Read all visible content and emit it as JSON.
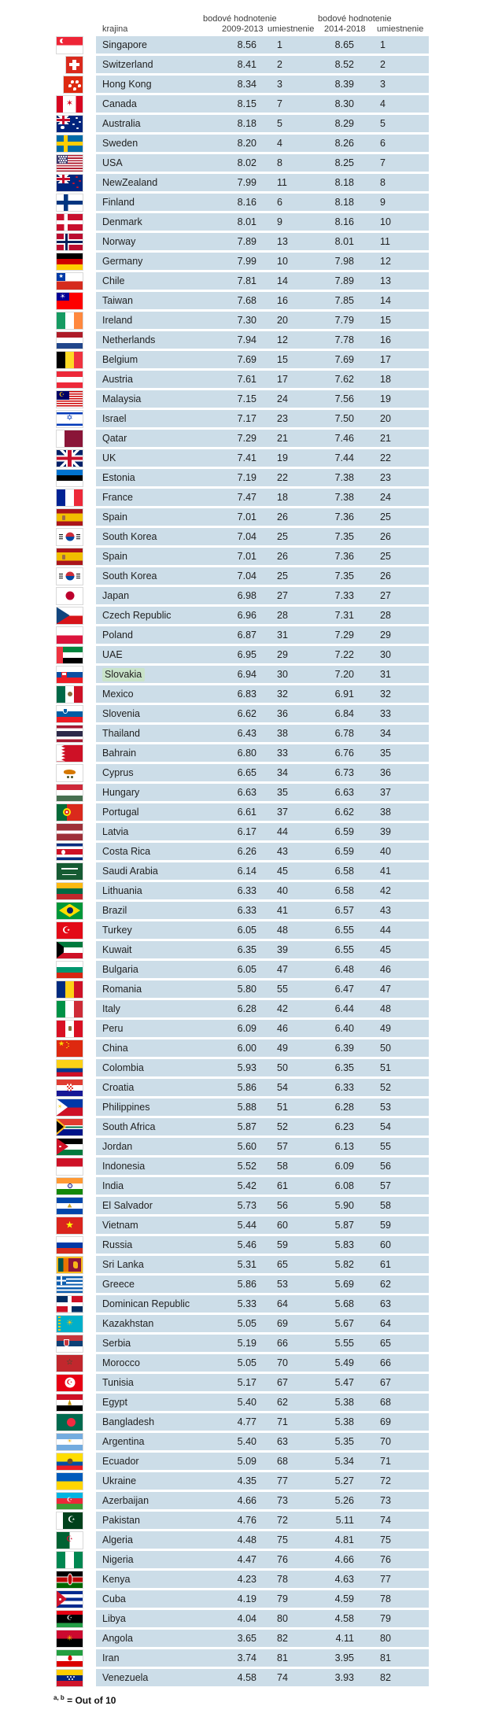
{
  "header": {
    "country": "krajina",
    "score_label_1": "bodové hodnotenie",
    "period_1": "2009-2013",
    "rank_label_1": "umiestnenie",
    "score_label_2": "bodové hodnotenie",
    "period_2": "2014-2018",
    "rank_label_2": "umiestnenie"
  },
  "footnote": {
    "sup": "a, b",
    "text": "= Out of 10"
  },
  "colors": {
    "row_bg": "#ccdde8",
    "highlight_bg": "#c9e3c9",
    "text": "#1f1f1f"
  },
  "flags": {
    "codes": [
      "sg",
      "ch",
      "hk",
      "ca",
      "au",
      "se",
      "us",
      "nz",
      "fi",
      "dk",
      "no",
      "de",
      "cl",
      "tw",
      "ie",
      "nl",
      "be",
      "at",
      "my",
      "il",
      "qa",
      "gb",
      "ee",
      "fr",
      "es",
      "kr",
      "es",
      "kr",
      "jp",
      "cz",
      "pl",
      "ae",
      "sk",
      "mx",
      "si",
      "th",
      "bh",
      "cy",
      "hu",
      "pt",
      "lv",
      "cr",
      "sa",
      "lt",
      "br",
      "tr",
      "kw",
      "bg",
      "ro",
      "it",
      "pe",
      "cn",
      "co",
      "hr",
      "ph",
      "za",
      "jo",
      "id",
      "in",
      "sv",
      "vn",
      "ru",
      "lk",
      "gr",
      "do",
      "kz",
      "rs",
      "ma",
      "tn",
      "eg",
      "bd",
      "ar",
      "ec",
      "ua",
      "az",
      "pk",
      "dz",
      "ng",
      "ke",
      "cu",
      "ly",
      "ao",
      "ir",
      "ve"
    ]
  },
  "chart_data": {
    "type": "table",
    "columns": [
      "krajina",
      "bodové hodnotenie 2009-2013",
      "umiestnenie",
      "bodové hodnotenie 2014-2018",
      "umiestnenie"
    ],
    "highlight_index": 32,
    "highlighted_country": "Slovakia",
    "note": "a, b = Out of 10",
    "score_scale": "Out of 10",
    "rows": [
      [
        "Singapore",
        "8.56",
        "1",
        "8.65",
        "1"
      ],
      [
        "Switzerland",
        "8.41",
        "2",
        "8.52",
        "2"
      ],
      [
        "Hong Kong",
        "8.34",
        "3",
        "8.39",
        "3"
      ],
      [
        "Canada",
        "8.15",
        "7",
        "8.30",
        "4"
      ],
      [
        "Australia",
        "8.18",
        "5",
        "8.29",
        "5"
      ],
      [
        "Sweden",
        "8.20",
        "4",
        "8.26",
        "6"
      ],
      [
        "USA",
        "8.02",
        "8",
        "8.25",
        "7"
      ],
      [
        "NewZealand",
        "7.99",
        "11",
        "8.18",
        "8"
      ],
      [
        "Finland",
        "8.16",
        "6",
        "8.18",
        "9"
      ],
      [
        "Denmark",
        "8.01",
        "9",
        "8.16",
        "10"
      ],
      [
        "Norway",
        "7.89",
        "13",
        "8.01",
        "11"
      ],
      [
        "Germany",
        "7.99",
        "10",
        "7.98",
        "12"
      ],
      [
        "Chile",
        "7.81",
        "14",
        "7.89",
        "13"
      ],
      [
        "Taiwan",
        "7.68",
        "16",
        "7.85",
        "14"
      ],
      [
        "Ireland",
        "7.30",
        "20",
        "7.79",
        "15"
      ],
      [
        "Netherlands",
        "7.94",
        "12",
        "7.78",
        "16"
      ],
      [
        "Belgium",
        "7.69",
        "15",
        "7.69",
        "17"
      ],
      [
        "Austria",
        "7.61",
        "17",
        "7.62",
        "18"
      ],
      [
        "Malaysia",
        "7.15",
        "24",
        "7.56",
        "19"
      ],
      [
        "Israel",
        "7.17",
        "23",
        "7.50",
        "20"
      ],
      [
        "Qatar",
        "7.29",
        "21",
        "7.46",
        "21"
      ],
      [
        "UK",
        "7.41",
        "19",
        "7.44",
        "22"
      ],
      [
        "Estonia",
        "7.19",
        "22",
        "7.38",
        "23"
      ],
      [
        "France",
        "7.47",
        "18",
        "7.38",
        "24"
      ],
      [
        "Spain",
        "7.01",
        "26",
        "7.36",
        "25"
      ],
      [
        "South Korea",
        "7.04",
        "25",
        "7.35",
        "26"
      ],
      [
        "Spain",
        "7.01",
        "26",
        "7.36",
        "25"
      ],
      [
        "South Korea",
        "7.04",
        "25",
        "7.35",
        "26"
      ],
      [
        "Japan",
        "6.98",
        "27",
        "7.33",
        "27"
      ],
      [
        "Czech Republic",
        "6.96",
        "28",
        "7.31",
        "28"
      ],
      [
        "Poland",
        "6.87",
        "31",
        "7.29",
        "29"
      ],
      [
        "UAE",
        "6.95",
        "29",
        "7.22",
        "30"
      ],
      [
        "Slovakia",
        "6.94",
        "30",
        "7.20",
        "31"
      ],
      [
        "Mexico",
        "6.83",
        "32",
        "6.91",
        "32"
      ],
      [
        "Slovenia",
        "6.62",
        "36",
        "6.84",
        "33"
      ],
      [
        "Thailand",
        "6.43",
        "38",
        "6.78",
        "34"
      ],
      [
        "Bahrain",
        "6.80",
        "33",
        "6.76",
        "35"
      ],
      [
        "Cyprus",
        "6.65",
        "34",
        "6.73",
        "36"
      ],
      [
        "Hungary",
        "6.63",
        "35",
        "6.63",
        "37"
      ],
      [
        "Portugal",
        "6.61",
        "37",
        "6.62",
        "38"
      ],
      [
        "Latvia",
        "6.17",
        "44",
        "6.59",
        "39"
      ],
      [
        "Costa Rica",
        "6.26",
        "43",
        "6.59",
        "40"
      ],
      [
        "Saudi Arabia",
        "6.14",
        "45",
        "6.58",
        "41"
      ],
      [
        "Lithuania",
        "6.33",
        "40",
        "6.58",
        "42"
      ],
      [
        "Brazil",
        "6.33",
        "41",
        "6.57",
        "43"
      ],
      [
        "Turkey",
        "6.05",
        "48",
        "6.55",
        "44"
      ],
      [
        "Kuwait",
        "6.35",
        "39",
        "6.55",
        "45"
      ],
      [
        "Bulgaria",
        "6.05",
        "47",
        "6.48",
        "46"
      ],
      [
        "Romania",
        "5.80",
        "55",
        "6.47",
        "47"
      ],
      [
        "Italy",
        "6.28",
        "42",
        "6.44",
        "48"
      ],
      [
        "Peru",
        "6.09",
        "46",
        "6.40",
        "49"
      ],
      [
        "China",
        "6.00",
        "49",
        "6.39",
        "50"
      ],
      [
        "Colombia",
        "5.93",
        "50",
        "6.35",
        "51"
      ],
      [
        "Croatia",
        "5.86",
        "54",
        "6.33",
        "52"
      ],
      [
        "Philippines",
        "5.88",
        "51",
        "6.28",
        "53"
      ],
      [
        "South Africa",
        "5.87",
        "52",
        "6.23",
        "54"
      ],
      [
        "Jordan",
        "5.60",
        "57",
        "6.13",
        "55"
      ],
      [
        "Indonesia",
        "5.52",
        "58",
        "6.09",
        "56"
      ],
      [
        "India",
        "5.42",
        "61",
        "6.08",
        "57"
      ],
      [
        "El Salvador",
        "5.73",
        "56",
        "5.90",
        "58"
      ],
      [
        "Vietnam",
        "5.44",
        "60",
        "5.87",
        "59"
      ],
      [
        "Russia",
        "5.46",
        "59",
        "5.83",
        "60"
      ],
      [
        "Sri Lanka",
        "5.31",
        "65",
        "5.82",
        "61"
      ],
      [
        "Greece",
        "5.86",
        "53",
        "5.69",
        "62"
      ],
      [
        "Dominican Republic",
        "5.33",
        "64",
        "5.68",
        "63"
      ],
      [
        "Kazakhstan",
        "5.05",
        "69",
        "5.67",
        "64"
      ],
      [
        "Serbia",
        "5.19",
        "66",
        "5.55",
        "65"
      ],
      [
        "Morocco",
        "5.05",
        "70",
        "5.49",
        "66"
      ],
      [
        "Tunisia",
        "5.17",
        "67",
        "5.47",
        "67"
      ],
      [
        "Egypt",
        "5.40",
        "62",
        "5.38",
        "68"
      ],
      [
        "Bangladesh",
        "4.77",
        "71",
        "5.38",
        "69"
      ],
      [
        "Argentina",
        "5.40",
        "63",
        "5.35",
        "70"
      ],
      [
        "Ecuador",
        "5.09",
        "68",
        "5.34",
        "71"
      ],
      [
        "Ukraine",
        "4.35",
        "77",
        "5.27",
        "72"
      ],
      [
        "Azerbaijan",
        "4.66",
        "73",
        "5.26",
        "73"
      ],
      [
        "Pakistan",
        "4.76",
        "72",
        "5.11",
        "74"
      ],
      [
        "Algeria",
        "4.48",
        "75",
        "4.81",
        "75"
      ],
      [
        "Nigeria",
        "4.47",
        "76",
        "4.66",
        "76"
      ],
      [
        "Kenya",
        "4.23",
        "78",
        "4.63",
        "77"
      ],
      [
        "Cuba",
        "4.19",
        "79",
        "4.59",
        "78"
      ],
      [
        "Libya",
        "4.04",
        "80",
        "4.58",
        "79"
      ],
      [
        "Angola",
        "3.65",
        "82",
        "4.11",
        "80"
      ],
      [
        "Iran",
        "3.74",
        "81",
        "3.95",
        "81"
      ],
      [
        "Venezuela",
        "4.58",
        "74",
        "3.93",
        "82"
      ]
    ]
  }
}
